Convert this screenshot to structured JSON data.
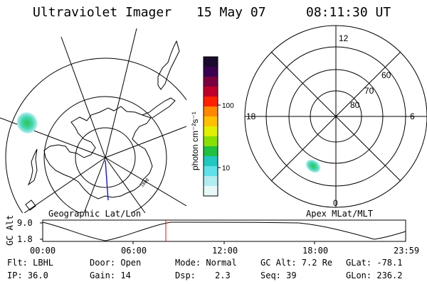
{
  "header": {
    "title": "Ultraviolet Imager",
    "date": "15 May 07",
    "time": "08:11:30 UT"
  },
  "colorbar": {
    "unit_label": "photon cm⁻²s⁻¹",
    "tick_high": "100",
    "tick_low": "10",
    "colors_top_to_bottom": [
      "#1a0a2e",
      "#3a0050",
      "#7a0040",
      "#c0002a",
      "#ff2000",
      "#ff8800",
      "#ffc000",
      "#e0f000",
      "#88e000",
      "#20c040",
      "#20c8c0",
      "#60e0e8",
      "#b0ecf0",
      "#e8f8f8"
    ]
  },
  "left_map": {
    "caption": "Geographic Lat/Lon",
    "tag": "1808"
  },
  "right_map": {
    "caption": "Apex MLat/MLT",
    "lat_labels": [
      "60",
      "70",
      "80"
    ],
    "mlt_labels": {
      "top": "12",
      "right": "6",
      "bottom": "0",
      "left": "18"
    }
  },
  "altitude_panel": {
    "axis_label": "GC Alt",
    "y_ticks": [
      "9.0",
      "1.8"
    ],
    "x_ticks": [
      "00:00",
      "06:00",
      "12:00",
      "18:00",
      "23:59"
    ],
    "current_time_marker_color": "#ff0000"
  },
  "info": {
    "filter": "Flt: LBHL",
    "door": "Door: Open",
    "mode": "Mode: Normal",
    "gc_alt": "GC Alt: 7.2 Re",
    "glat": "GLat: -78.1",
    "ip": "IP: 36.0",
    "gain": "Gain: 14",
    "dsp_label": "Dsp:",
    "dsp_value": "2.3",
    "seq": "Seq: 39",
    "glon": "GLon: 236.2"
  }
}
